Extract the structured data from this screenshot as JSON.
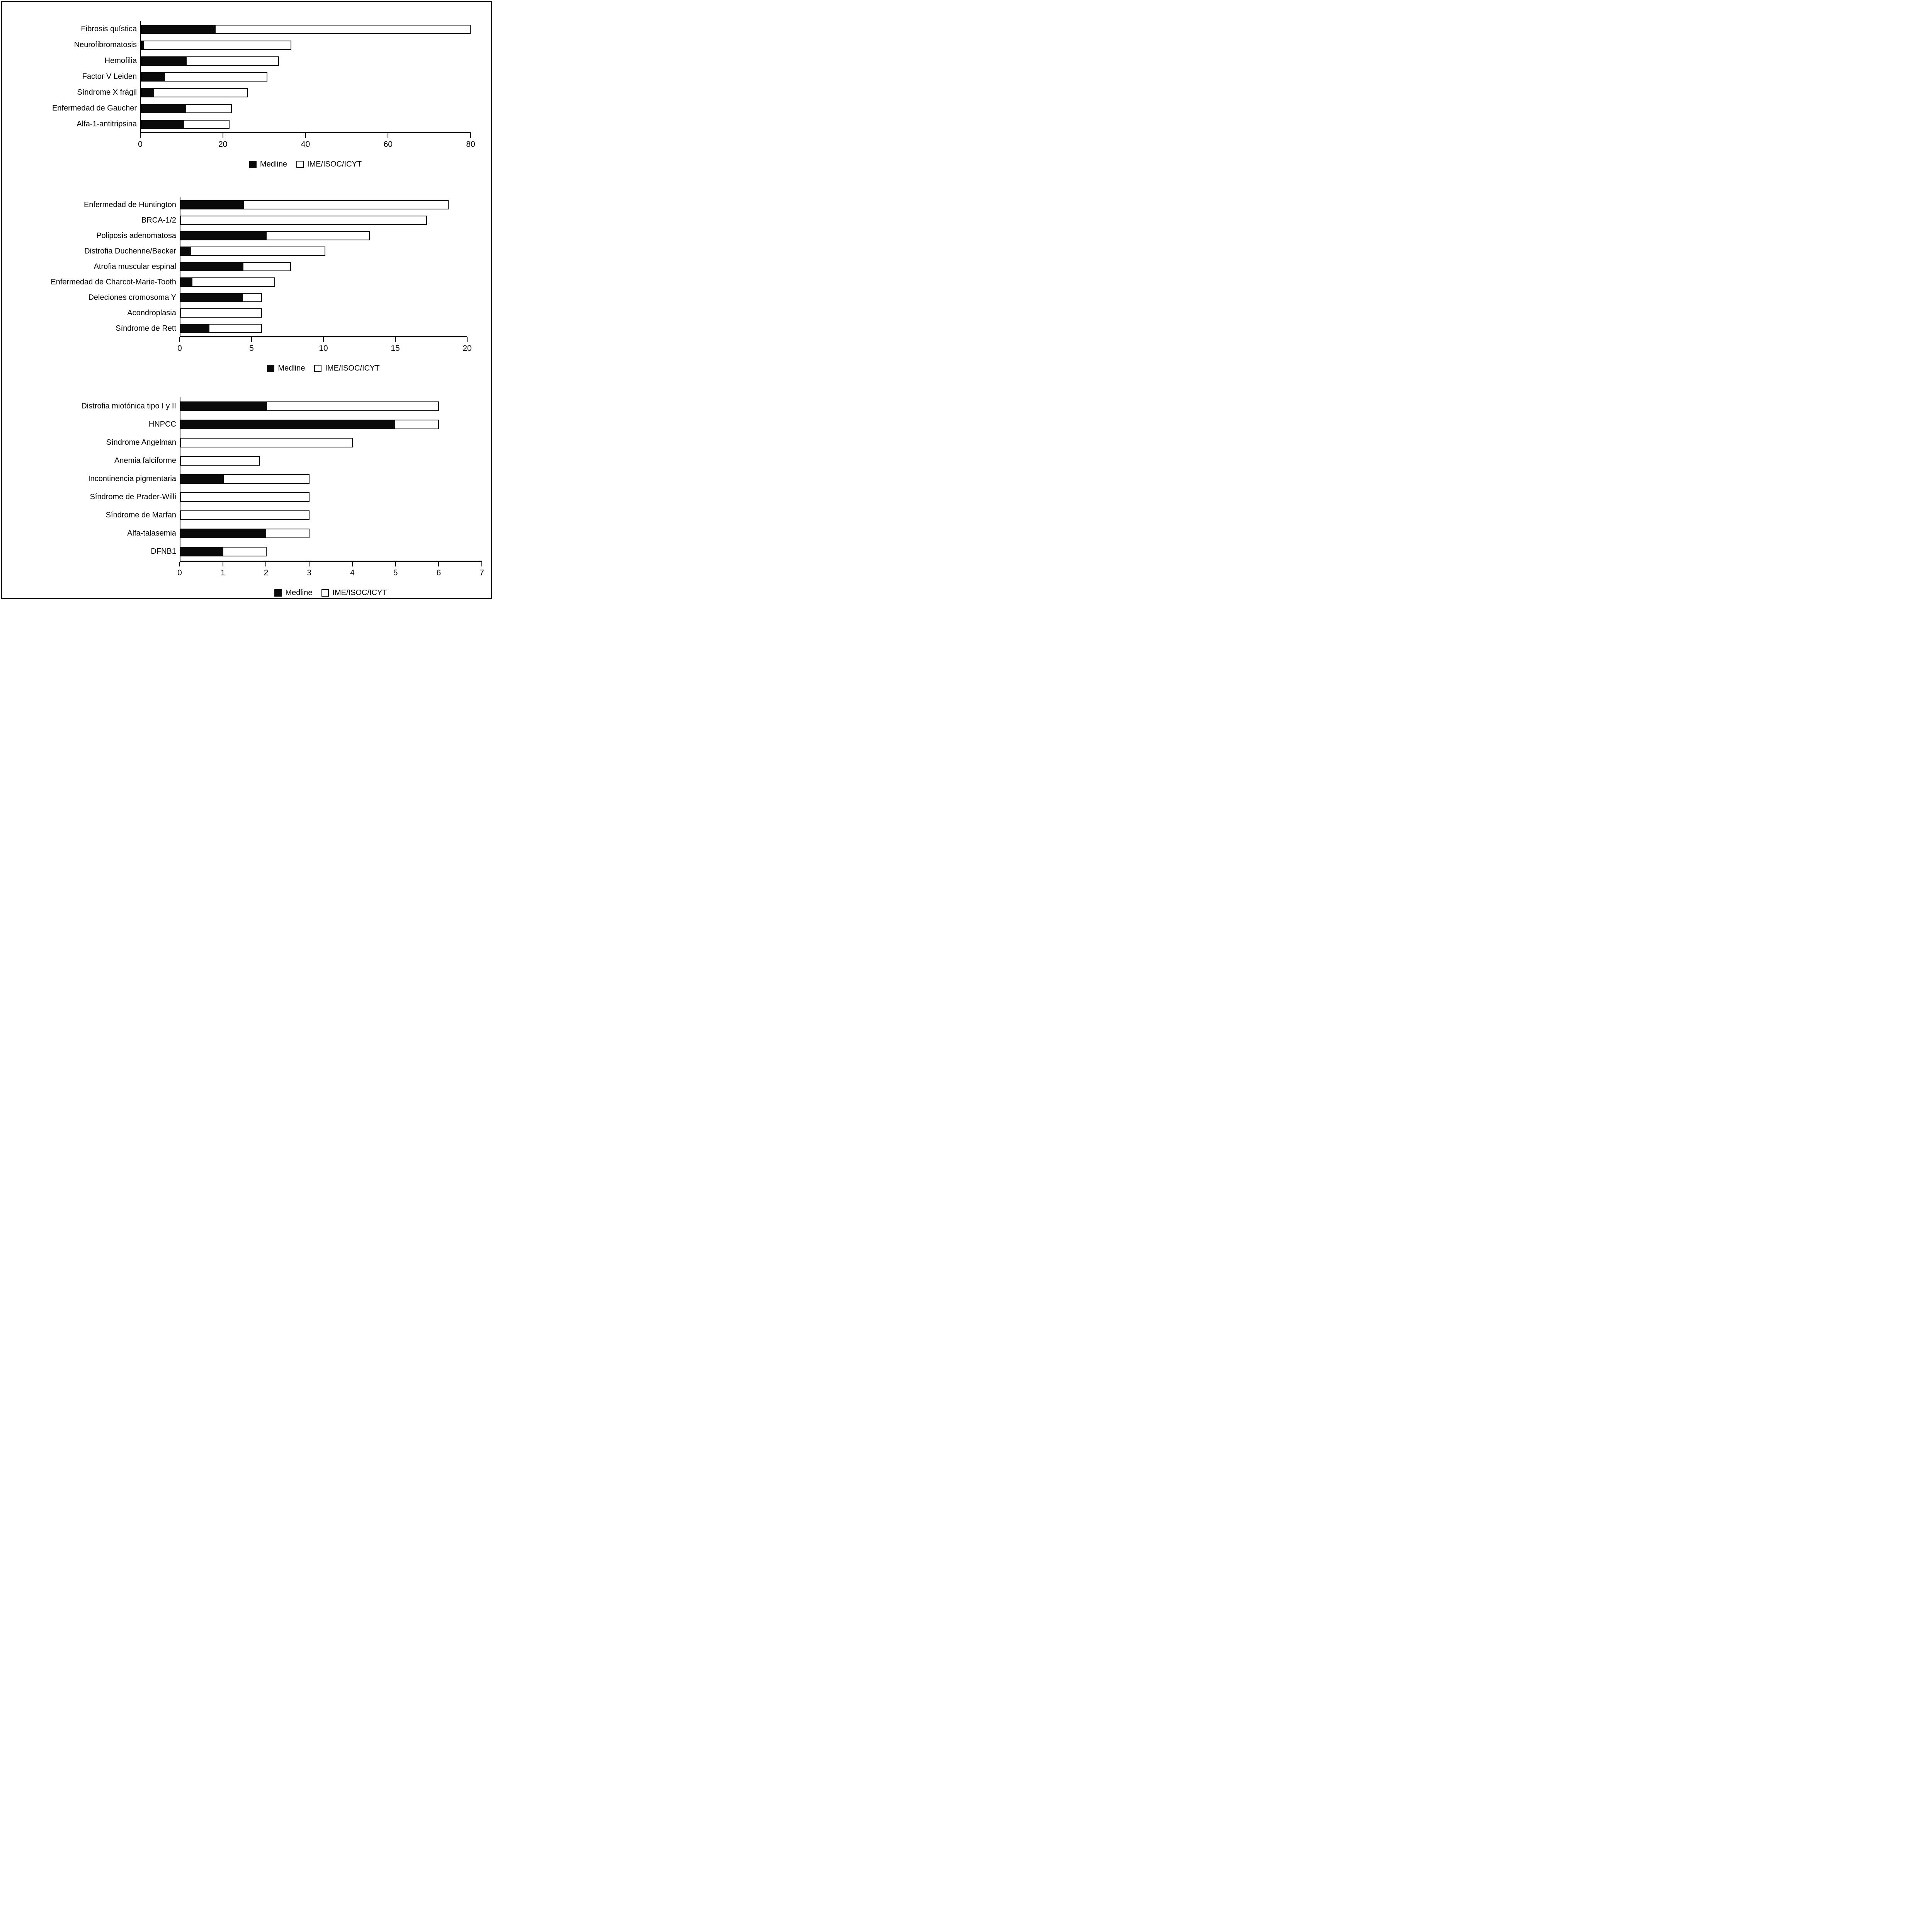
{
  "figure": {
    "description": "Three stacked horizontal bar charts comparing number of documents per genetic disease in Medline vs IME/ISOC/ICYT databases"
  },
  "legend": {
    "medline_label": "Medline",
    "ime_label": "IME/ISOC/ICYT"
  },
  "colors": {
    "medline_fill": "#0a0a0a",
    "ime_fill": "#ffffff",
    "border": "#000000",
    "background": "#ffffff"
  },
  "chart_data": [
    {
      "type": "bar",
      "orientation": "horizontal",
      "stacked": true,
      "grid": false,
      "legend_position": "bottom",
      "categories": [
        "Fibrosis quística",
        "Neurofibromatosis",
        "Hemofilia",
        "Factor V Leiden",
        "Síndrome X frágil",
        "Enfermedad de Gaucher",
        "Alfa-1-antitripsina"
      ],
      "series": [
        {
          "name": "Medline",
          "values": [
            18,
            0.5,
            11,
            5.7,
            3,
            11,
            10.5
          ]
        },
        {
          "name": "IME/ISOC/ICYT",
          "values": [
            62,
            36,
            22.5,
            25,
            23,
            11,
            11
          ]
        }
      ],
      "xlim": [
        0,
        80
      ],
      "xticks": [
        0,
        20,
        40,
        60,
        80
      ]
    },
    {
      "type": "bar",
      "orientation": "horizontal",
      "stacked": true,
      "grid": false,
      "legend_position": "bottom",
      "categories": [
        "Enfermedad de Huntington",
        "BRCA-1/2",
        "Poliposis adenomatosa",
        "Distrofia Duchenne/Becker",
        "Atrofia muscular espinal",
        "Enfermedad de Charcot-Marie-Tooth",
        "Deleciones cromosoma Y",
        "Acondroplasia",
        "Síndrome de Rett"
      ],
      "series": [
        {
          "name": "Medline",
          "values": [
            4.4,
            0,
            6,
            0.7,
            4.4,
            0.8,
            4.4,
            0,
            2
          ]
        },
        {
          "name": "IME/ISOC/ICYT",
          "values": [
            14.3,
            17.2,
            7.2,
            9.4,
            3.3,
            5.8,
            1.3,
            5.7,
            3.7
          ]
        }
      ],
      "xlim": [
        0,
        20
      ],
      "xticks": [
        0,
        5,
        10,
        15,
        20
      ]
    },
    {
      "type": "bar",
      "orientation": "horizontal",
      "stacked": true,
      "grid": false,
      "legend_position": "bottom",
      "categories": [
        "Distrofia miotónica tipo I y II",
        "HNPCC",
        "Síndrome Angelman",
        "Anemia falciforme",
        "Incontinencia pigmentaria",
        "Síndrome de Prader-Willi",
        "Síndrome de Marfan",
        "Alfa-talasemia",
        "DFNB1"
      ],
      "series": [
        {
          "name": "Medline",
          "values": [
            2,
            5,
            0,
            0,
            1,
            0,
            0,
            2,
            1
          ]
        },
        {
          "name": "IME/ISOC/ICYT",
          "values": [
            4,
            1,
            4,
            1.85,
            2,
            3,
            3,
            1,
            1
          ]
        }
      ],
      "xlim": [
        0,
        7
      ],
      "xticks": [
        0,
        1,
        2,
        3,
        4,
        5,
        6,
        7
      ]
    }
  ]
}
